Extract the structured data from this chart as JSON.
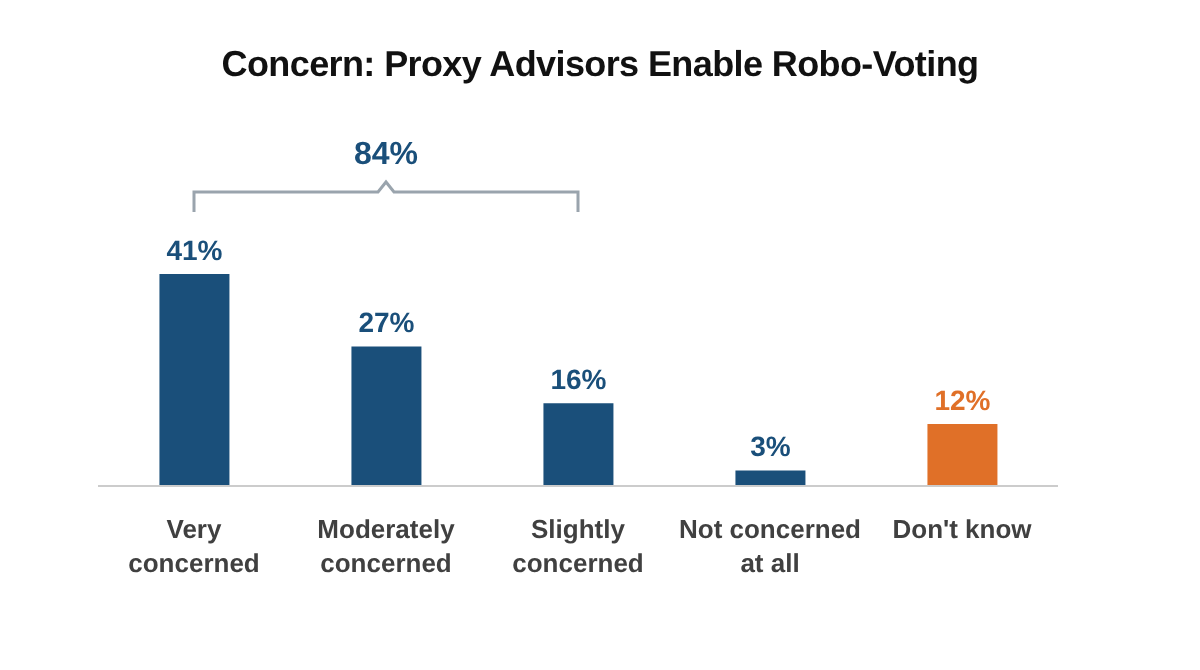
{
  "chart_data": {
    "type": "bar",
    "title": "Concern: Proxy Advisors Enable Robo-Voting",
    "categories": [
      "Very concerned",
      "Moderately concerned",
      "Slightly concerned",
      "Not concerned at all",
      "Don't know"
    ],
    "values": [
      41,
      27,
      16,
      3,
      12
    ],
    "colors": [
      "#1a4f7a",
      "#1a4f7a",
      "#1a4f7a",
      "#1a4f7a",
      "#e07028"
    ],
    "value_labels": [
      "41%",
      "27%",
      "16%",
      "3%",
      "12%"
    ],
    "annotations": [
      "84%"
    ]
  }
}
